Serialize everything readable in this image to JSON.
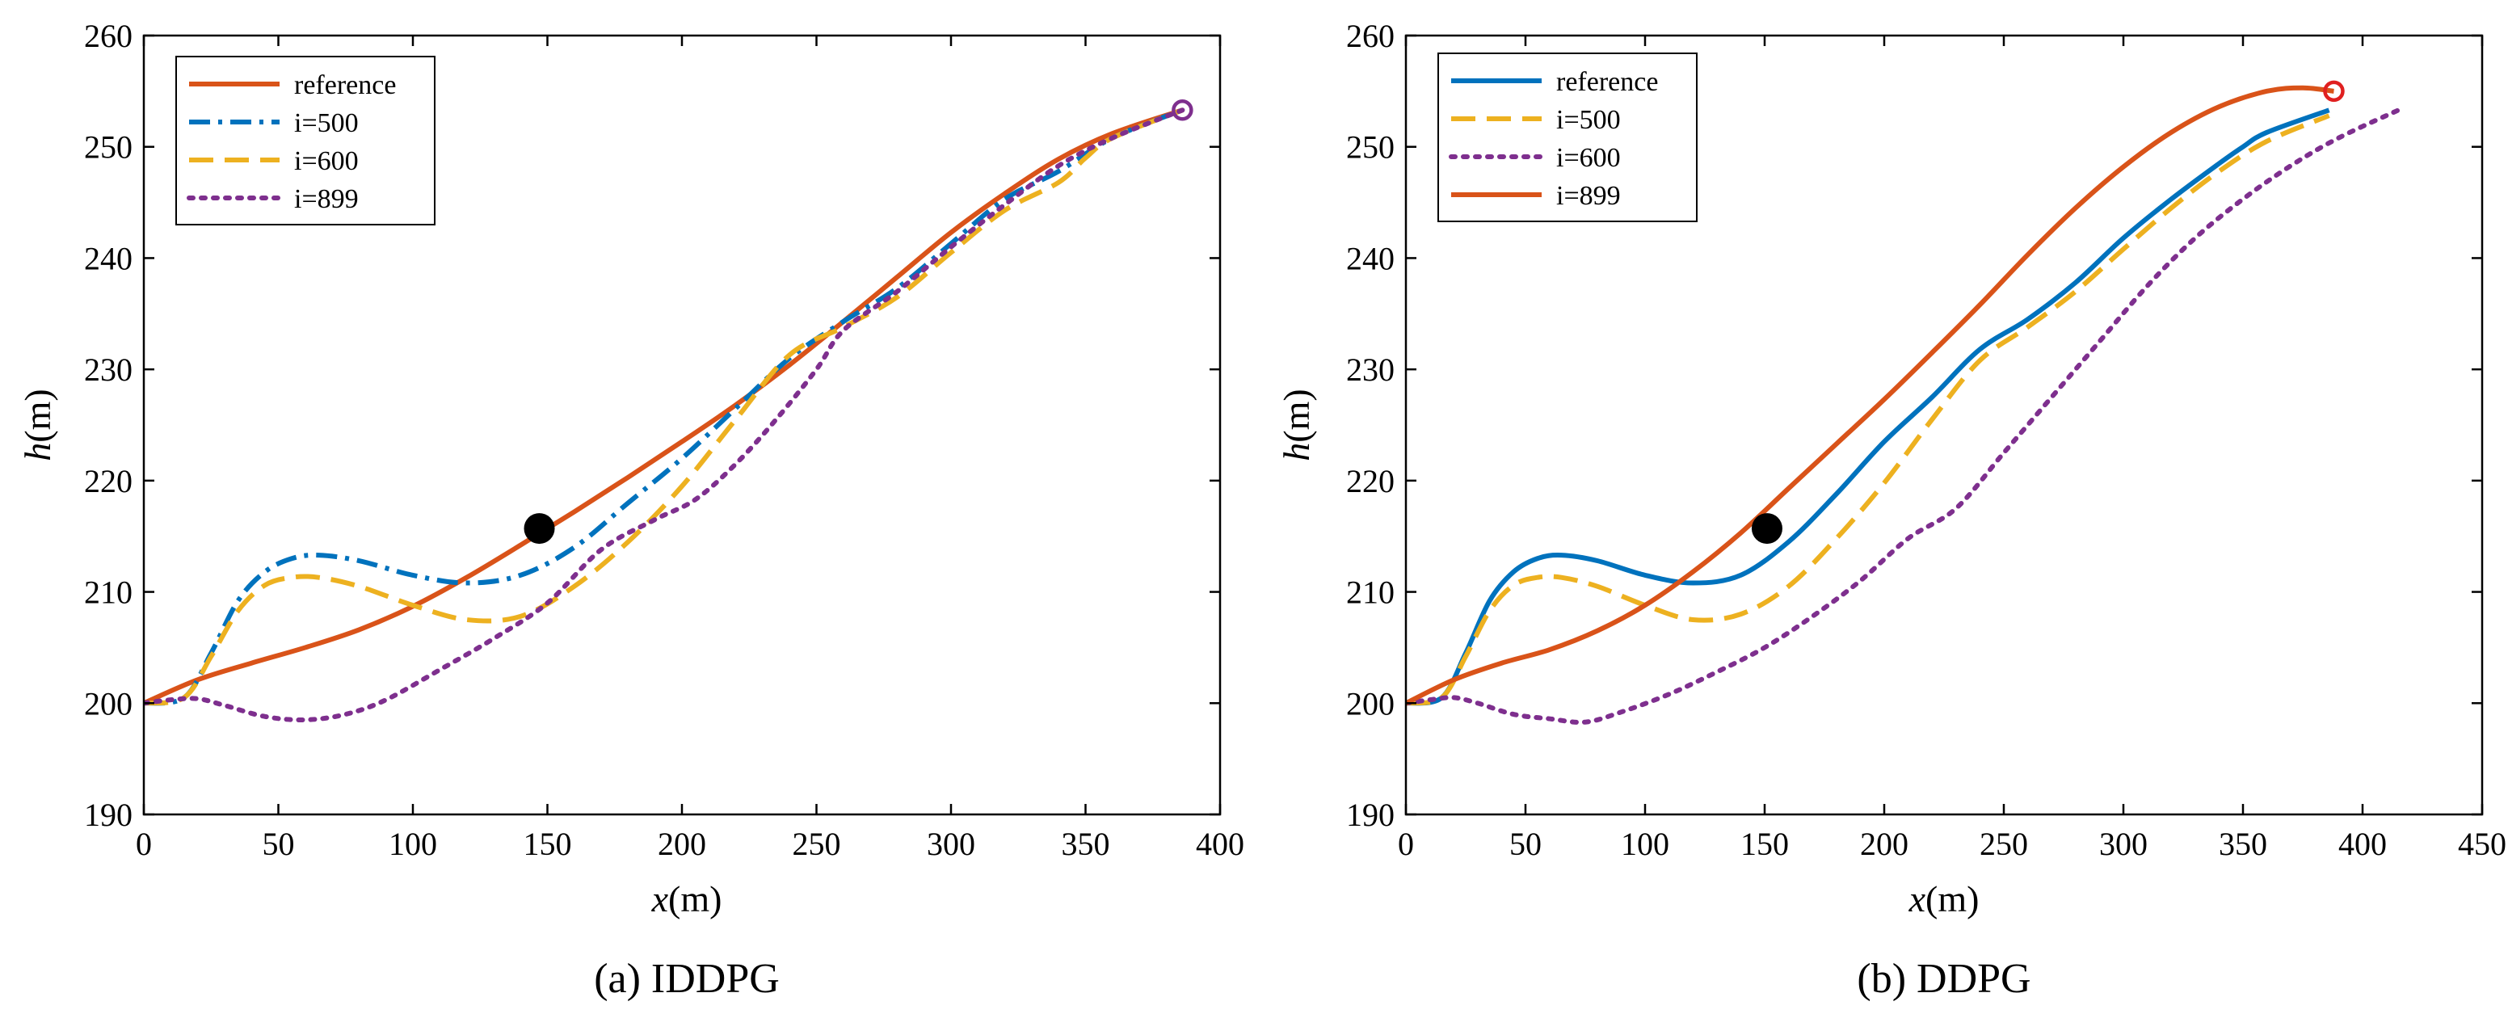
{
  "figure": {
    "panels": [
      {
        "caption": "(a) IDDPG",
        "xlabel_var": "x",
        "xlabel_unit": "(m)",
        "ylabel_var": "h",
        "ylabel_unit": "(m)"
      },
      {
        "caption": "(b) DDPG",
        "xlabel_var": "x",
        "xlabel_unit": "(m)",
        "ylabel_var": "h",
        "ylabel_unit": "(m)"
      }
    ]
  },
  "chart_data": [
    {
      "type": "line",
      "title": "(a) IDDPG",
      "xlabel": "x(m)",
      "ylabel": "h(m)",
      "xlim": [
        0,
        400
      ],
      "ylim": [
        190,
        260
      ],
      "xticks": [
        0,
        50,
        100,
        150,
        200,
        250,
        300,
        350,
        400
      ],
      "yticks": [
        190,
        200,
        210,
        220,
        230,
        240,
        250,
        260
      ],
      "grid": false,
      "legend_position": "top-left",
      "series": [
        {
          "name": "reference",
          "color": "#D95319",
          "style": "solid",
          "x": [
            0,
            20,
            40,
            60,
            80,
            100,
            120,
            140,
            160,
            180,
            200,
            220,
            240,
            260,
            280,
            300,
            320,
            340,
            360,
            386
          ],
          "y": [
            200,
            202.1,
            203.6,
            205,
            206.6,
            208.7,
            211.3,
            214.2,
            217.2,
            220.3,
            223.5,
            226.8,
            230.4,
            234.3,
            238.3,
            242.3,
            245.8,
            248.9,
            251.2,
            253.3
          ]
        },
        {
          "name": "i=500",
          "color": "#0072BD",
          "style": "dashdot",
          "x": [
            0,
            15,
            25,
            35,
            45,
            55,
            65,
            80,
            100,
            120,
            140,
            160,
            180,
            200,
            220,
            240,
            260,
            280,
            300,
            320,
            340,
            360,
            386
          ],
          "y": [
            200,
            200.5,
            204.5,
            209.2,
            211.8,
            213,
            213.3,
            212.8,
            211.5,
            210.8,
            211.5,
            214,
            218,
            222,
            226.5,
            231,
            234.3,
            237.3,
            241.3,
            245.3,
            247.8,
            250.8,
            253.3
          ]
        },
        {
          "name": "i=600",
          "color": "#EDB120",
          "style": "dashed",
          "x": [
            0,
            15,
            25,
            35,
            45,
            55,
            65,
            80,
            100,
            120,
            140,
            160,
            180,
            200,
            220,
            240,
            260,
            280,
            300,
            320,
            340,
            350,
            360,
            386
          ],
          "y": [
            200,
            200.5,
            204.2,
            208.3,
            210.6,
            211.3,
            211.3,
            210.5,
            208.8,
            207.5,
            207.8,
            210.5,
            214.5,
            219.5,
            225.5,
            231.3,
            233.8,
            236.5,
            240.5,
            244.3,
            246.8,
            249,
            250.8,
            253.3
          ]
        },
        {
          "name": "i=899",
          "color": "#7E2F8E",
          "style": "dotted",
          "x": [
            0,
            10,
            20,
            30,
            45,
            60,
            75,
            90,
            110,
            130,
            150,
            170,
            190,
            205,
            220,
            235,
            250,
            260,
            280,
            300,
            320,
            340,
            360,
            386
          ],
          "y": [
            200,
            200.3,
            200.4,
            199.8,
            198.8,
            198.5,
            199,
            200.3,
            203,
            205.8,
            209,
            213.8,
            216.5,
            218.3,
            221.5,
            225.5,
            230,
            233.5,
            237,
            241,
            244.8,
            248.3,
            250.8,
            253.3
          ]
        }
      ],
      "annotations": [
        {
          "type": "filled-circle",
          "x": 147,
          "y": 215.7,
          "color": "#000000"
        },
        {
          "type": "open-circle",
          "x": 386,
          "y": 253.3,
          "color": "#7E2F8E"
        }
      ]
    },
    {
      "type": "line",
      "title": "(b) DDPG",
      "xlabel": "x(m)",
      "ylabel": "h(m)",
      "xlim": [
        0,
        450
      ],
      "ylim": [
        190,
        260
      ],
      "xticks": [
        0,
        50,
        100,
        150,
        200,
        250,
        300,
        350,
        400,
        450
      ],
      "yticks": [
        190,
        200,
        210,
        220,
        230,
        240,
        250,
        260
      ],
      "grid": false,
      "legend_position": "top-left",
      "series": [
        {
          "name": "reference",
          "color": "#0072BD",
          "style": "solid",
          "x": [
            0,
            15,
            25,
            35,
            45,
            55,
            65,
            80,
            100,
            120,
            140,
            160,
            180,
            200,
            220,
            240,
            260,
            280,
            300,
            320,
            340,
            350,
            360,
            386
          ],
          "y": [
            200,
            200.5,
            204.5,
            209.2,
            211.8,
            213,
            213.3,
            212.8,
            211.5,
            210.8,
            211.5,
            214.5,
            218.8,
            223.5,
            227.5,
            231.8,
            234.5,
            237.8,
            241.8,
            245.3,
            248.5,
            250,
            251.3,
            253.3
          ]
        },
        {
          "name": "i=500",
          "color": "#EDB120",
          "style": "dashed",
          "x": [
            0,
            15,
            25,
            35,
            45,
            55,
            65,
            80,
            100,
            120,
            140,
            160,
            180,
            200,
            220,
            240,
            260,
            280,
            300,
            320,
            340,
            360,
            386
          ],
          "y": [
            200,
            200.5,
            204.2,
            208.3,
            210.6,
            211.3,
            211.3,
            210.5,
            208.8,
            207.5,
            208,
            210.5,
            214.8,
            219.8,
            225.5,
            230.8,
            233.8,
            237,
            240.8,
            244.5,
            247.8,
            250.5,
            252.8
          ]
        },
        {
          "name": "i=600",
          "color": "#7E2F8E",
          "style": "dotted",
          "x": [
            0,
            10,
            20,
            30,
            45,
            60,
            75,
            90,
            110,
            130,
            150,
            170,
            190,
            210,
            230,
            250,
            270,
            290,
            310,
            330,
            350,
            370,
            390,
            415
          ],
          "y": [
            200,
            200.3,
            200.5,
            200,
            199,
            198.6,
            198.3,
            199.2,
            200.8,
            202.8,
            205,
            207.8,
            211,
            214.8,
            217.5,
            222.5,
            227.5,
            232.5,
            237.5,
            241.8,
            245.3,
            248.3,
            250.8,
            253.3
          ]
        },
        {
          "name": "i=899",
          "color": "#D95319",
          "style": "solid",
          "x": [
            0,
            20,
            40,
            60,
            80,
            100,
            120,
            140,
            160,
            180,
            200,
            220,
            240,
            260,
            280,
            300,
            320,
            340,
            360,
            375,
            388
          ],
          "y": [
            200,
            202.1,
            203.6,
            204.8,
            206.5,
            208.8,
            211.8,
            215.3,
            219.3,
            223.3,
            227.3,
            231.5,
            235.8,
            240.3,
            244.5,
            248.2,
            251.3,
            253.6,
            255,
            255.3,
            255
          ]
        }
      ],
      "annotations": [
        {
          "type": "filled-circle",
          "x": 151,
          "y": 215.7,
          "color": "#000000"
        },
        {
          "type": "open-circle",
          "x": 388,
          "y": 255,
          "color": "#E02020"
        }
      ]
    }
  ]
}
